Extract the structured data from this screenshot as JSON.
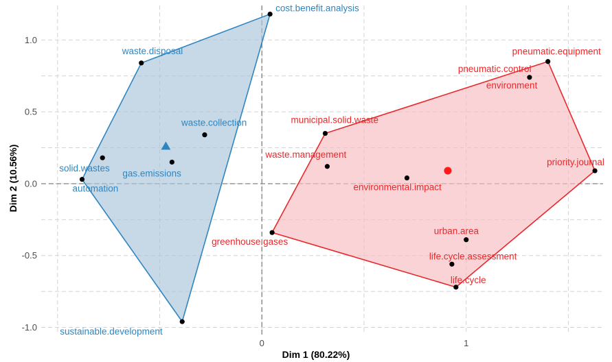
{
  "chart_data": {
    "type": "scatter",
    "title": "",
    "xlabel": "Dim 1 (80.22%)",
    "ylabel": "Dim 2 (10.56%)",
    "xlim": [
      -1.08,
      1.67
    ],
    "ylim": [
      -1.05,
      1.24
    ],
    "grid": true,
    "xticks": [
      0,
      1
    ],
    "yticks": [
      -1.0,
      -0.5,
      0.0,
      0.5,
      1.0
    ],
    "xtick_labels": [
      "0",
      "1"
    ],
    "ytick_labels": [
      "-1.0",
      "-0.5",
      "0.0",
      "0.5",
      "1.0"
    ],
    "series": [
      {
        "color": "#2e86c1",
        "fill": "#a9c3d9",
        "centroid": {
          "x": -0.47,
          "y": 0.26
        },
        "hull": [
          "cost.benefit.analysis",
          "waste.disposal",
          "automation",
          "sustainable.development"
        ],
        "points": [
          {
            "label": "cost.benefit.analysis",
            "x": 0.04,
            "y": 1.18
          },
          {
            "label": "waste.disposal",
            "x": -0.59,
            "y": 0.84
          },
          {
            "label": "waste.collection",
            "x": -0.28,
            "y": 0.34
          },
          {
            "label": "solid.wastes",
            "x": -0.78,
            "y": 0.18
          },
          {
            "label": "gas.emissions",
            "x": -0.44,
            "y": 0.15
          },
          {
            "label": "automation",
            "x": -0.88,
            "y": 0.03
          },
          {
            "label": "sustainable.development",
            "x": -0.39,
            "y": -0.96
          }
        ]
      },
      {
        "color": "#e8292c",
        "fill": "#f6bcbe",
        "centroid": {
          "x": 0.91,
          "y": 0.09
        },
        "hull": [
          "pneumatic.equipment",
          "priority.journal",
          "life.cycle",
          "greenhouse.gases",
          "municipal.solid.waste"
        ],
        "points": [
          {
            "label": "pneumatic.equipment",
            "x": 1.4,
            "y": 0.85
          },
          {
            "label": "pneumatic.control",
            "x": 1.31,
            "y": 0.74
          },
          {
            "label": "environment",
            "x": 1.31,
            "y": 0.74
          },
          {
            "label": "municipal.solid.waste",
            "x": 0.31,
            "y": 0.35
          },
          {
            "label": "waste.management",
            "x": 0.32,
            "y": 0.12
          },
          {
            "label": "environmental.impact",
            "x": 0.71,
            "y": 0.04
          },
          {
            "label": "priority.journal",
            "x": 1.63,
            "y": 0.09
          },
          {
            "label": "greenhouse.gases",
            "x": 0.05,
            "y": -0.34
          },
          {
            "label": "urban.area",
            "x": 1.0,
            "y": -0.39
          },
          {
            "label": "life.cycle.assessment",
            "x": 0.93,
            "y": -0.56
          },
          {
            "label": "life.cycle",
            "x": 0.95,
            "y": -0.72
          }
        ]
      }
    ]
  }
}
